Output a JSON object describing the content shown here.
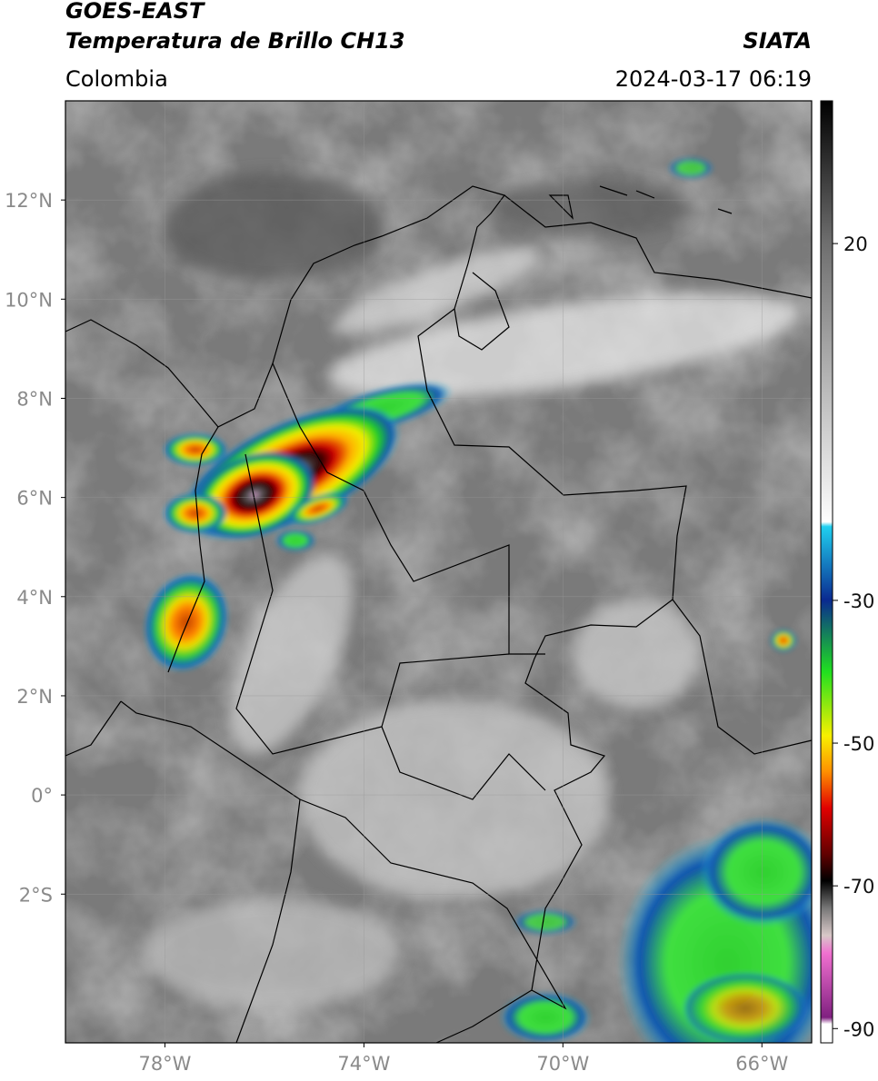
{
  "map": {
    "satellite": "GOES-EAST",
    "product": "Temperatura de Brillo CH13",
    "source": "SIATA",
    "region": "Colombia",
    "datetime": "2024-03-17 06:19",
    "lonlim": [
      -80,
      -65
    ],
    "latlim": [
      -5,
      14
    ],
    "lonticks": [
      {
        "value": -78,
        "label": "78°W"
      },
      {
        "value": -74,
        "label": "74°W"
      },
      {
        "value": -70,
        "label": "70°W"
      },
      {
        "value": -66,
        "label": "66°W"
      }
    ],
    "latticks": [
      {
        "value": 12,
        "label": "12°N"
      },
      {
        "value": 10,
        "label": "10°N"
      },
      {
        "value": 8,
        "label": "8°N"
      },
      {
        "value": 6,
        "label": "6°N"
      },
      {
        "value": 4,
        "label": "4°N"
      },
      {
        "value": 2,
        "label": "2°N"
      },
      {
        "value": 0,
        "label": "0°"
      },
      {
        "value": -2,
        "label": "2°S"
      }
    ],
    "colorbar": {
      "lim": [
        -92,
        40
      ],
      "ticks": [
        20,
        -30,
        -50,
        -70,
        -90
      ]
    }
  }
}
